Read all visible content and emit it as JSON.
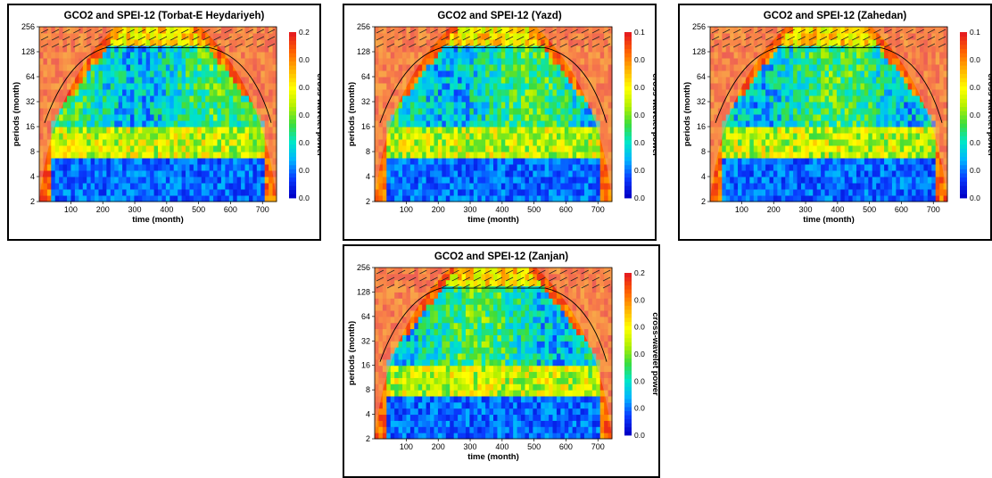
{
  "chart_data": [
    {
      "type": "heatmap",
      "title": "GCO2 and SPEI-12 (Torbat-E Heydariyeh)",
      "xlabel": "time (month)",
      "ylabel": "periods (month)",
      "colorbar_label": "cross-wavelet power",
      "x_ticks": [
        100,
        200,
        300,
        400,
        500,
        600,
        700
      ],
      "y_ticks": [
        2,
        4,
        8,
        16,
        32,
        64,
        128,
        256
      ],
      "xlim": [
        1,
        744
      ],
      "ylim": [
        2,
        256
      ],
      "y_scale": "log2",
      "colorbar_ticks": [
        "0.2",
        "0.0",
        "0.0",
        "0.0",
        "0.0",
        "0.0",
        "0.0"
      ],
      "colorbar_range": [
        0,
        0.2
      ]
    },
    {
      "type": "heatmap",
      "title": "GCO2 and SPEI-12 (Yazd)",
      "xlabel": "time (month)",
      "ylabel": "periods (month)",
      "colorbar_label": "cross-wavelet power",
      "x_ticks": [
        100,
        200,
        300,
        400,
        500,
        600,
        700
      ],
      "y_ticks": [
        2,
        4,
        8,
        16,
        32,
        64,
        128,
        256
      ],
      "xlim": [
        1,
        744
      ],
      "ylim": [
        2,
        256
      ],
      "y_scale": "log2",
      "colorbar_ticks": [
        "0.1",
        "0.0",
        "0.0",
        "0.0",
        "0.0",
        "0.0",
        "0.0"
      ],
      "colorbar_range": [
        0,
        0.1
      ]
    },
    {
      "type": "heatmap",
      "title": "GCO2 and SPEI-12 (Zahedan)",
      "xlabel": "time (month)",
      "ylabel": "periods (month)",
      "colorbar_label": "cross-wavelet power",
      "x_ticks": [
        100,
        200,
        300,
        400,
        500,
        600,
        700
      ],
      "y_ticks": [
        2,
        4,
        8,
        16,
        32,
        64,
        128,
        256
      ],
      "xlim": [
        1,
        744
      ],
      "ylim": [
        2,
        256
      ],
      "y_scale": "log2",
      "colorbar_ticks": [
        "0.1",
        "0.0",
        "0.0",
        "0.0",
        "0.0",
        "0.0",
        "0.0"
      ],
      "colorbar_range": [
        0,
        0.1
      ]
    },
    {
      "type": "heatmap",
      "title": "GCO2 and SPEI-12 (Zanjan)",
      "xlabel": "time (month)",
      "ylabel": "periods (month)",
      "colorbar_label": "cross-wavelet power",
      "x_ticks": [
        100,
        200,
        300,
        400,
        500,
        600,
        700
      ],
      "y_ticks": [
        2,
        4,
        8,
        16,
        32,
        64,
        128,
        256
      ],
      "xlim": [
        1,
        744
      ],
      "ylim": [
        2,
        256
      ],
      "y_scale": "log2",
      "colorbar_ticks": [
        "0.2",
        "0.0",
        "0.0",
        "0.0",
        "0.0",
        "0.0",
        "0.0"
      ],
      "colorbar_range": [
        0,
        0.2
      ]
    }
  ],
  "colors": {
    "colormap": [
      "#0000c8",
      "#0a3cff",
      "#00b4ff",
      "#00e6c8",
      "#3cdc3c",
      "#b4f000",
      "#ffff00",
      "#ffb400",
      "#ff6400",
      "#e61e1e"
    ],
    "cone_overlay": "#f0a0a0",
    "frame": "#000000"
  }
}
